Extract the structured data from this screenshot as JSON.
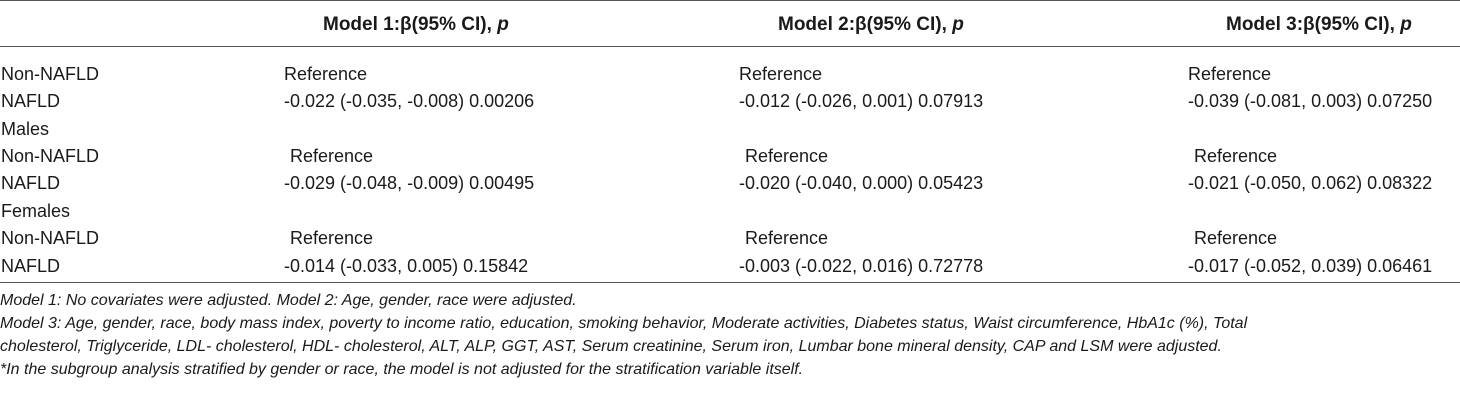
{
  "table": {
    "headers": [
      "",
      "Model 1:β(95% CI), ",
      "Model 2:β(95% CI), ",
      "Model 3:β(95% CI), "
    ],
    "header_p": "p",
    "rows": [
      {
        "label": "Non-NAFLD",
        "m1": "Reference",
        "m2": "Reference",
        "m3": "Reference"
      },
      {
        "label": "NAFLD",
        "m1": "-0.022 (-0.035, -0.008) 0.00206",
        "m2": "-0.012 (-0.026, 0.001) 0.07913",
        "m3": "-0.039 (-0.081, 0.003) 0.07250"
      },
      {
        "label": "Males",
        "m1": "",
        "m2": "",
        "m3": ""
      },
      {
        "label": "Non-NAFLD",
        "m1": "Reference",
        "m2": "Reference",
        "m3": "Reference"
      },
      {
        "label": "NAFLD",
        "m1": "-0.029 (-0.048, -0.009) 0.00495",
        "m2": "-0.020 (-0.040, 0.000) 0.05423",
        "m3": "-0.021 (-0.050, 0.062) 0.08322"
      },
      {
        "label": "Females",
        "m1": "",
        "m2": "",
        "m3": ""
      },
      {
        "label": "Non-NAFLD",
        "m1": "Reference",
        "m2": "Reference",
        "m3": "Reference"
      },
      {
        "label": "NAFLD",
        "m1": "-0.014 (-0.033, 0.005) 0.15842",
        "m2": "-0.003 (-0.022, 0.016) 0.72778",
        "m3": "-0.017 (-0.052, 0.039) 0.06461"
      }
    ]
  },
  "notes": [
    "Model 1: No covariates were adjusted. Model 2: Age, gender, race were adjusted.",
    "Model 3: Age, gender, race, body mass index, poverty to income ratio, education, smoking behavior, Moderate activities, Diabetes status, Waist circumference, HbA1c (%), Total",
    "cholesterol, Triglyceride, LDL- cholesterol, HDL- cholesterol, ALT, ALP, GGT, AST, Serum creatinine, Serum iron, Lumbar bone mineral density, CAP and LSM were adjusted.",
    "*In the subgroup analysis stratified by gender or race, the model is not adjusted for the stratification variable itself."
  ]
}
